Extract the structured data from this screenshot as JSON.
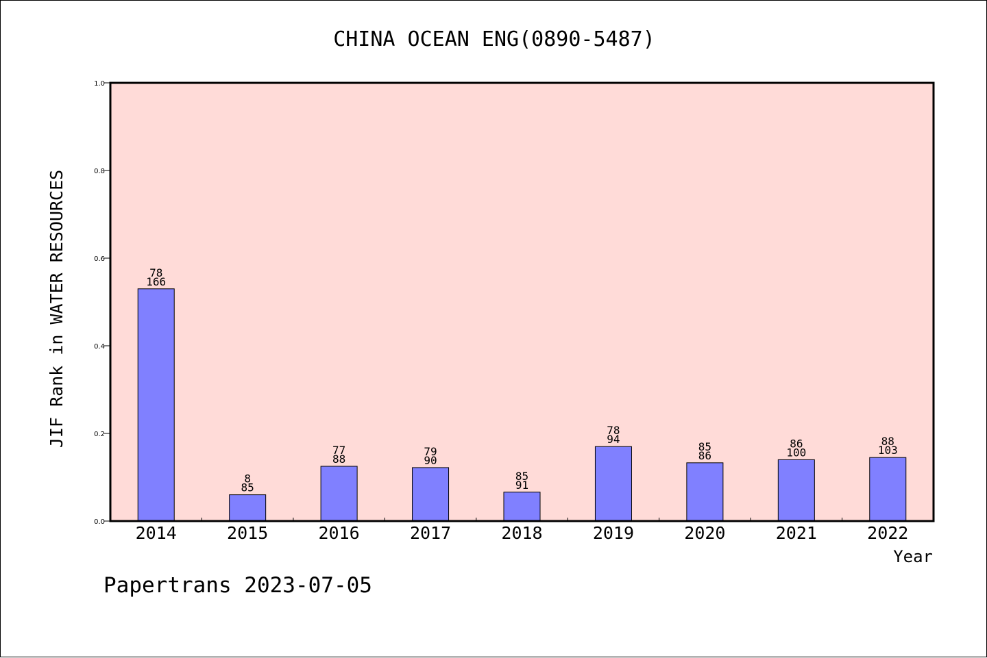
{
  "chart_data": {
    "type": "bar",
    "title": "CHINA OCEAN ENG(0890-5487)",
    "xlabel": "Year",
    "ylabel": "JIF Rank in WATER RESOURCES",
    "ylim": [
      0,
      1.0
    ],
    "yticks": [
      "0.0",
      "0.2",
      "0.4",
      "0.6",
      "0.8",
      "1.0"
    ],
    "grid": false,
    "categories": [
      "2014",
      "2015",
      "2016",
      "2017",
      "2018",
      "2019",
      "2020",
      "2021",
      "2022"
    ],
    "values": [
      0.53,
      0.06,
      0.125,
      0.122,
      0.066,
      0.17,
      0.133,
      0.14,
      0.145
    ],
    "labels_top": [
      "78",
      "8",
      "77",
      "79",
      "85",
      "78",
      "85",
      "86",
      "88"
    ],
    "labels_bottom": [
      "166",
      "85",
      "88",
      "90",
      "91",
      "94",
      "86",
      "100",
      "103"
    ],
    "colors": {
      "plot_bg": "#FFDBD8",
      "bar": "#8080FF",
      "frame": "#000000"
    }
  },
  "footer": "Papertrans 2023-07-05"
}
